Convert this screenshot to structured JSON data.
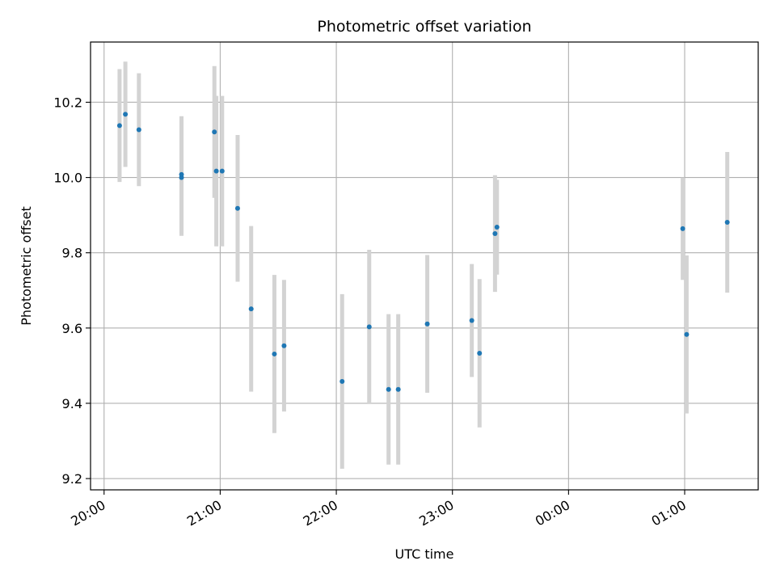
{
  "chart_data": {
    "type": "scatter",
    "title": "Photometric offset variation",
    "xlabel": "UTC time",
    "ylabel": "Photometric offset",
    "x_ticks": [
      "20:00",
      "21:00",
      "22:00",
      "23:00",
      "00:00",
      "01:00"
    ],
    "y_ticks": [
      "9.2",
      "9.4",
      "9.6",
      "9.8",
      "10.0",
      "10.2"
    ],
    "xlim": [
      "19:53",
      "01:38"
    ],
    "ylim": [
      9.17,
      10.36
    ],
    "grid": true,
    "point_color": "#1f77b4",
    "errorbar_color": "#d3d3d3",
    "series": [
      {
        "points": [
          {
            "x": "20:08",
            "y": 10.138,
            "err": 0.15
          },
          {
            "x": "20:11",
            "y": 10.168,
            "err": 0.14
          },
          {
            "x": "20:18",
            "y": 10.127,
            "err": 0.15
          },
          {
            "x": "20:40",
            "y": 10.0,
            "err": 0.155
          },
          {
            "x": "20:40",
            "y": 10.008,
            "err": 0.155
          },
          {
            "x": "20:57",
            "y": 10.121,
            "err": 0.175
          },
          {
            "x": "20:58",
            "y": 10.017,
            "err": 0.2
          },
          {
            "x": "21:01",
            "y": 10.017,
            "err": 0.2
          },
          {
            "x": "21:09",
            "y": 9.918,
            "err": 0.195
          },
          {
            "x": "21:16",
            "y": 9.651,
            "err": 0.22
          },
          {
            "x": "21:28",
            "y": 9.531,
            "err": 0.21
          },
          {
            "x": "21:33",
            "y": 9.553,
            "err": 0.175
          },
          {
            "x": "22:03",
            "y": 9.458,
            "err": 0.232
          },
          {
            "x": "22:17",
            "y": 9.603,
            "err": 0.205
          },
          {
            "x": "22:27",
            "y": 9.437,
            "err": 0.2
          },
          {
            "x": "22:32",
            "y": 9.437,
            "err": 0.2
          },
          {
            "x": "22:47",
            "y": 9.611,
            "err": 0.183
          },
          {
            "x": "23:10",
            "y": 9.62,
            "err": 0.15
          },
          {
            "x": "23:14",
            "y": 9.533,
            "err": 0.197
          },
          {
            "x": "23:22",
            "y": 9.851,
            "err": 0.155
          },
          {
            "x": "23:23",
            "y": 9.868,
            "err": 0.126
          },
          {
            "x": "00:59",
            "y": 9.864,
            "err": 0.136
          },
          {
            "x": "01:01",
            "y": 9.583,
            "err": 0.21
          },
          {
            "x": "01:22",
            "y": 9.881,
            "err": 0.187
          }
        ]
      }
    ]
  }
}
